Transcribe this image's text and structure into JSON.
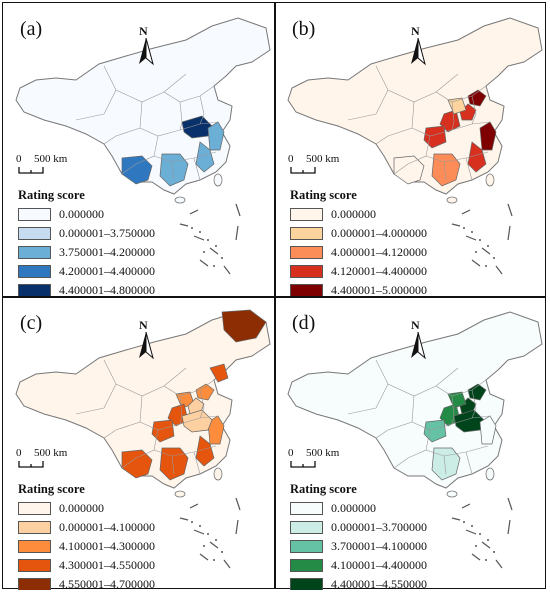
{
  "panels": [
    {
      "label": "(a)",
      "legend": {
        "title": "Rating score",
        "items": [
          {
            "label": "0.000000",
            "color": "#f7fbff"
          },
          {
            "label": "0.000001–3.750000",
            "color": "#c6dbef"
          },
          {
            "label": "3.750001–4.200000",
            "color": "#6baed6"
          },
          {
            "label": "4.200001–4.400000",
            "color": "#2f78c0"
          },
          {
            "label": "4.400001–4.800000",
            "color": "#08306b"
          }
        ]
      }
    },
    {
      "label": "(b)",
      "legend": {
        "title": "Rating score",
        "items": [
          {
            "label": "0.000000",
            "color": "#fff5eb"
          },
          {
            "label": "0.000001–4.000000",
            "color": "#fdd49e"
          },
          {
            "label": "4.000001–4.120000",
            "color": "#fc8d59"
          },
          {
            "label": "4.120001–4.400000",
            "color": "#d7301f"
          },
          {
            "label": "4.400001–5.000000",
            "color": "#7f0000"
          }
        ]
      }
    },
    {
      "label": "(c)",
      "legend": {
        "title": "Rating score",
        "items": [
          {
            "label": "0.000000",
            "color": "#fff5eb"
          },
          {
            "label": "0.000001–4.100000",
            "color": "#fdd0a2"
          },
          {
            "label": "4.100001–4.300000",
            "color": "#fd8d3c"
          },
          {
            "label": "4.300001–4.550000",
            "color": "#e6550d"
          },
          {
            "label": "4.550001–4.700000",
            "color": "#8c2d04"
          }
        ]
      }
    },
    {
      "label": "(d)",
      "legend": {
        "title": "Rating score",
        "items": [
          {
            "label": "0.000000",
            "color": "#f7fcfd"
          },
          {
            "label": "0.000001–3.700000",
            "color": "#ccece6"
          },
          {
            "label": "3.700001–4.100000",
            "color": "#66c2a4"
          },
          {
            "label": "4.100001–4.400000",
            "color": "#238b45"
          },
          {
            "label": "4.400001–4.550000",
            "color": "#00441b"
          }
        ]
      }
    }
  ],
  "north_label": "N",
  "scale": {
    "zero": "0",
    "distance": "500 km"
  }
}
